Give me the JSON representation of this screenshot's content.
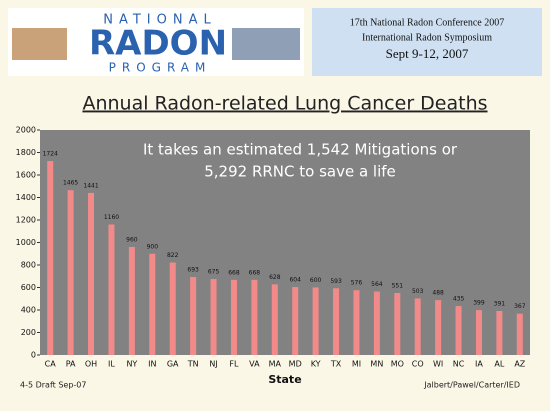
{
  "header": {
    "logo": [
      "NATIONAL",
      "RADON",
      "PROGRAM"
    ],
    "conference": [
      "17th National Radon Conference 2007",
      "International Radon Symposium",
      "Sept 9-12, 2007"
    ]
  },
  "footer": {
    "left": "4-5 Draft Sep-07",
    "right": "Jalbert/Pawel/Carter/IED"
  },
  "chart_data": {
    "type": "bar",
    "title": "Annual Radon-related Lung Cancer Deaths",
    "annotations": [
      "It takes an estimated 1,542 Mitigations or",
      "5,292 RRNC to save a life"
    ],
    "x_label": "State",
    "categories": [
      "CA",
      "PA",
      "OH",
      "IL",
      "NY",
      "IN",
      "GA",
      "TN",
      "NJ",
      "FL",
      "VA",
      "MA",
      "MD",
      "KY",
      "TX",
      "MI",
      "MN",
      "MO",
      "CO",
      "WI",
      "NC",
      "IA",
      "AL",
      "AZ"
    ],
    "values": [
      1724,
      1465,
      1441,
      1160,
      960,
      900,
      822,
      693,
      675,
      668,
      668,
      628,
      604,
      600,
      593,
      576,
      564,
      551,
      503,
      488,
      435,
      399,
      391,
      367
    ],
    "color": "#f28a8a",
    "ylim": [
      0,
      2000
    ],
    "yticks": [
      0,
      200,
      400,
      600,
      800,
      1000,
      1200,
      1400,
      1600,
      1800,
      2000
    ],
    "grid": false
  }
}
